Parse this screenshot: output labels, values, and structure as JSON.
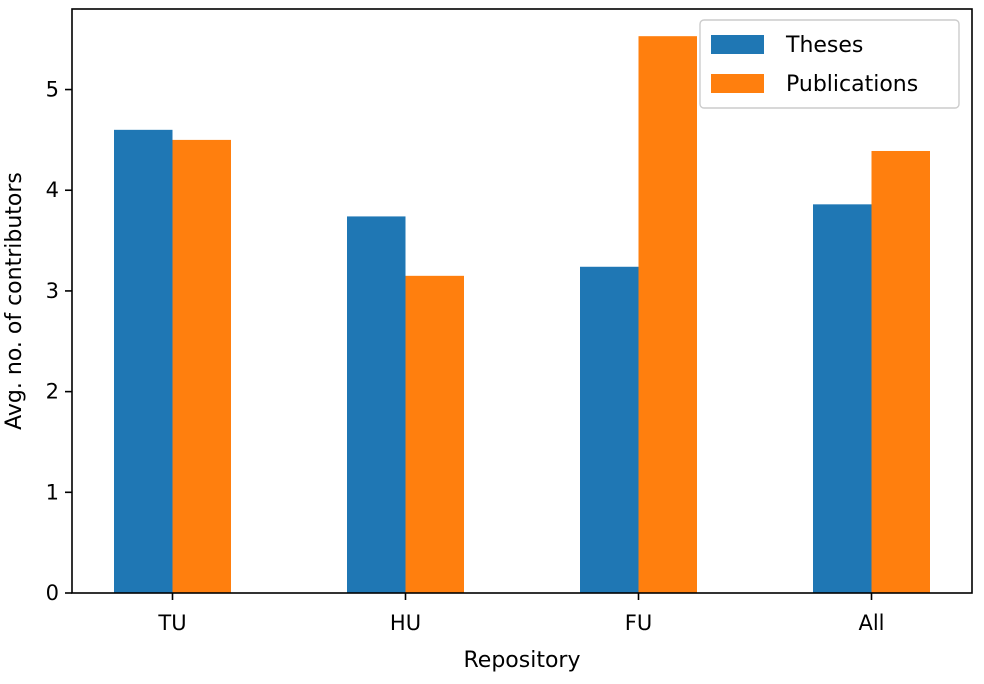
{
  "chart_data": {
    "type": "bar",
    "xlabel": "Repository",
    "ylabel": "Avg. no. of contributors",
    "categories": [
      "TU",
      "HU",
      "FU",
      "All"
    ],
    "series": [
      {
        "name": "Theses",
        "values": [
          4.6,
          3.74,
          3.24,
          3.86
        ],
        "color": "#1f77b4"
      },
      {
        "name": "Publications",
        "values": [
          4.5,
          3.15,
          5.53,
          4.39
        ],
        "color": "#ff7f0e"
      }
    ],
    "ylim": [
      0,
      5.8
    ],
    "yticks": [
      0,
      1,
      2,
      3,
      4,
      5
    ],
    "legend_position": "top-right",
    "grid": false
  }
}
